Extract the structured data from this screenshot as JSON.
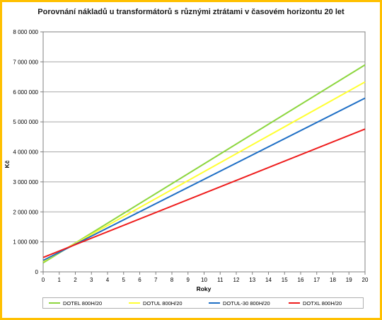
{
  "chart_data": {
    "type": "line",
    "title": "Porovnání nákladů u transformátorů s různými ztrátami v časovém horizontu 20 let",
    "xlabel": "Roky",
    "ylabel": "Kč",
    "xlim": [
      0,
      20
    ],
    "ylim": [
      0,
      8000000
    ],
    "x_ticks": [
      "0",
      "1",
      "2",
      "3",
      "4",
      "5",
      "6",
      "7",
      "8",
      "9",
      "10",
      "11",
      "12",
      "13",
      "14",
      "15",
      "16",
      "17",
      "18",
      "19",
      "20"
    ],
    "y_ticks": [
      "0",
      "1 000 000",
      "2 000 000",
      "3 000 000",
      "4 000 000",
      "5 000 000",
      "6 000 000",
      "7 000 000",
      "8 000 000"
    ],
    "y_tick_values": [
      0,
      1000000,
      2000000,
      3000000,
      4000000,
      5000000,
      6000000,
      7000000,
      8000000
    ],
    "grid": "horizontal",
    "legend_position": "bottom",
    "series": [
      {
        "name": "DOTEL 800H/20",
        "color": "#8dd63f",
        "x": [
          0,
          20
        ],
        "values": [
          300000,
          6900000
        ]
      },
      {
        "name": "DOTUL 800H/20",
        "color": "#ffff33",
        "x": [
          0,
          20
        ],
        "values": [
          350000,
          6330000
        ]
      },
      {
        "name": "DOTUL-30 800H/20",
        "color": "#1f6fc5",
        "x": [
          0,
          20
        ],
        "values": [
          380000,
          5790000
        ]
      },
      {
        "name": "DOTXL 800H/20",
        "color": "#ee1c1c",
        "x": [
          0,
          20
        ],
        "values": [
          480000,
          4760000
        ]
      }
    ]
  }
}
